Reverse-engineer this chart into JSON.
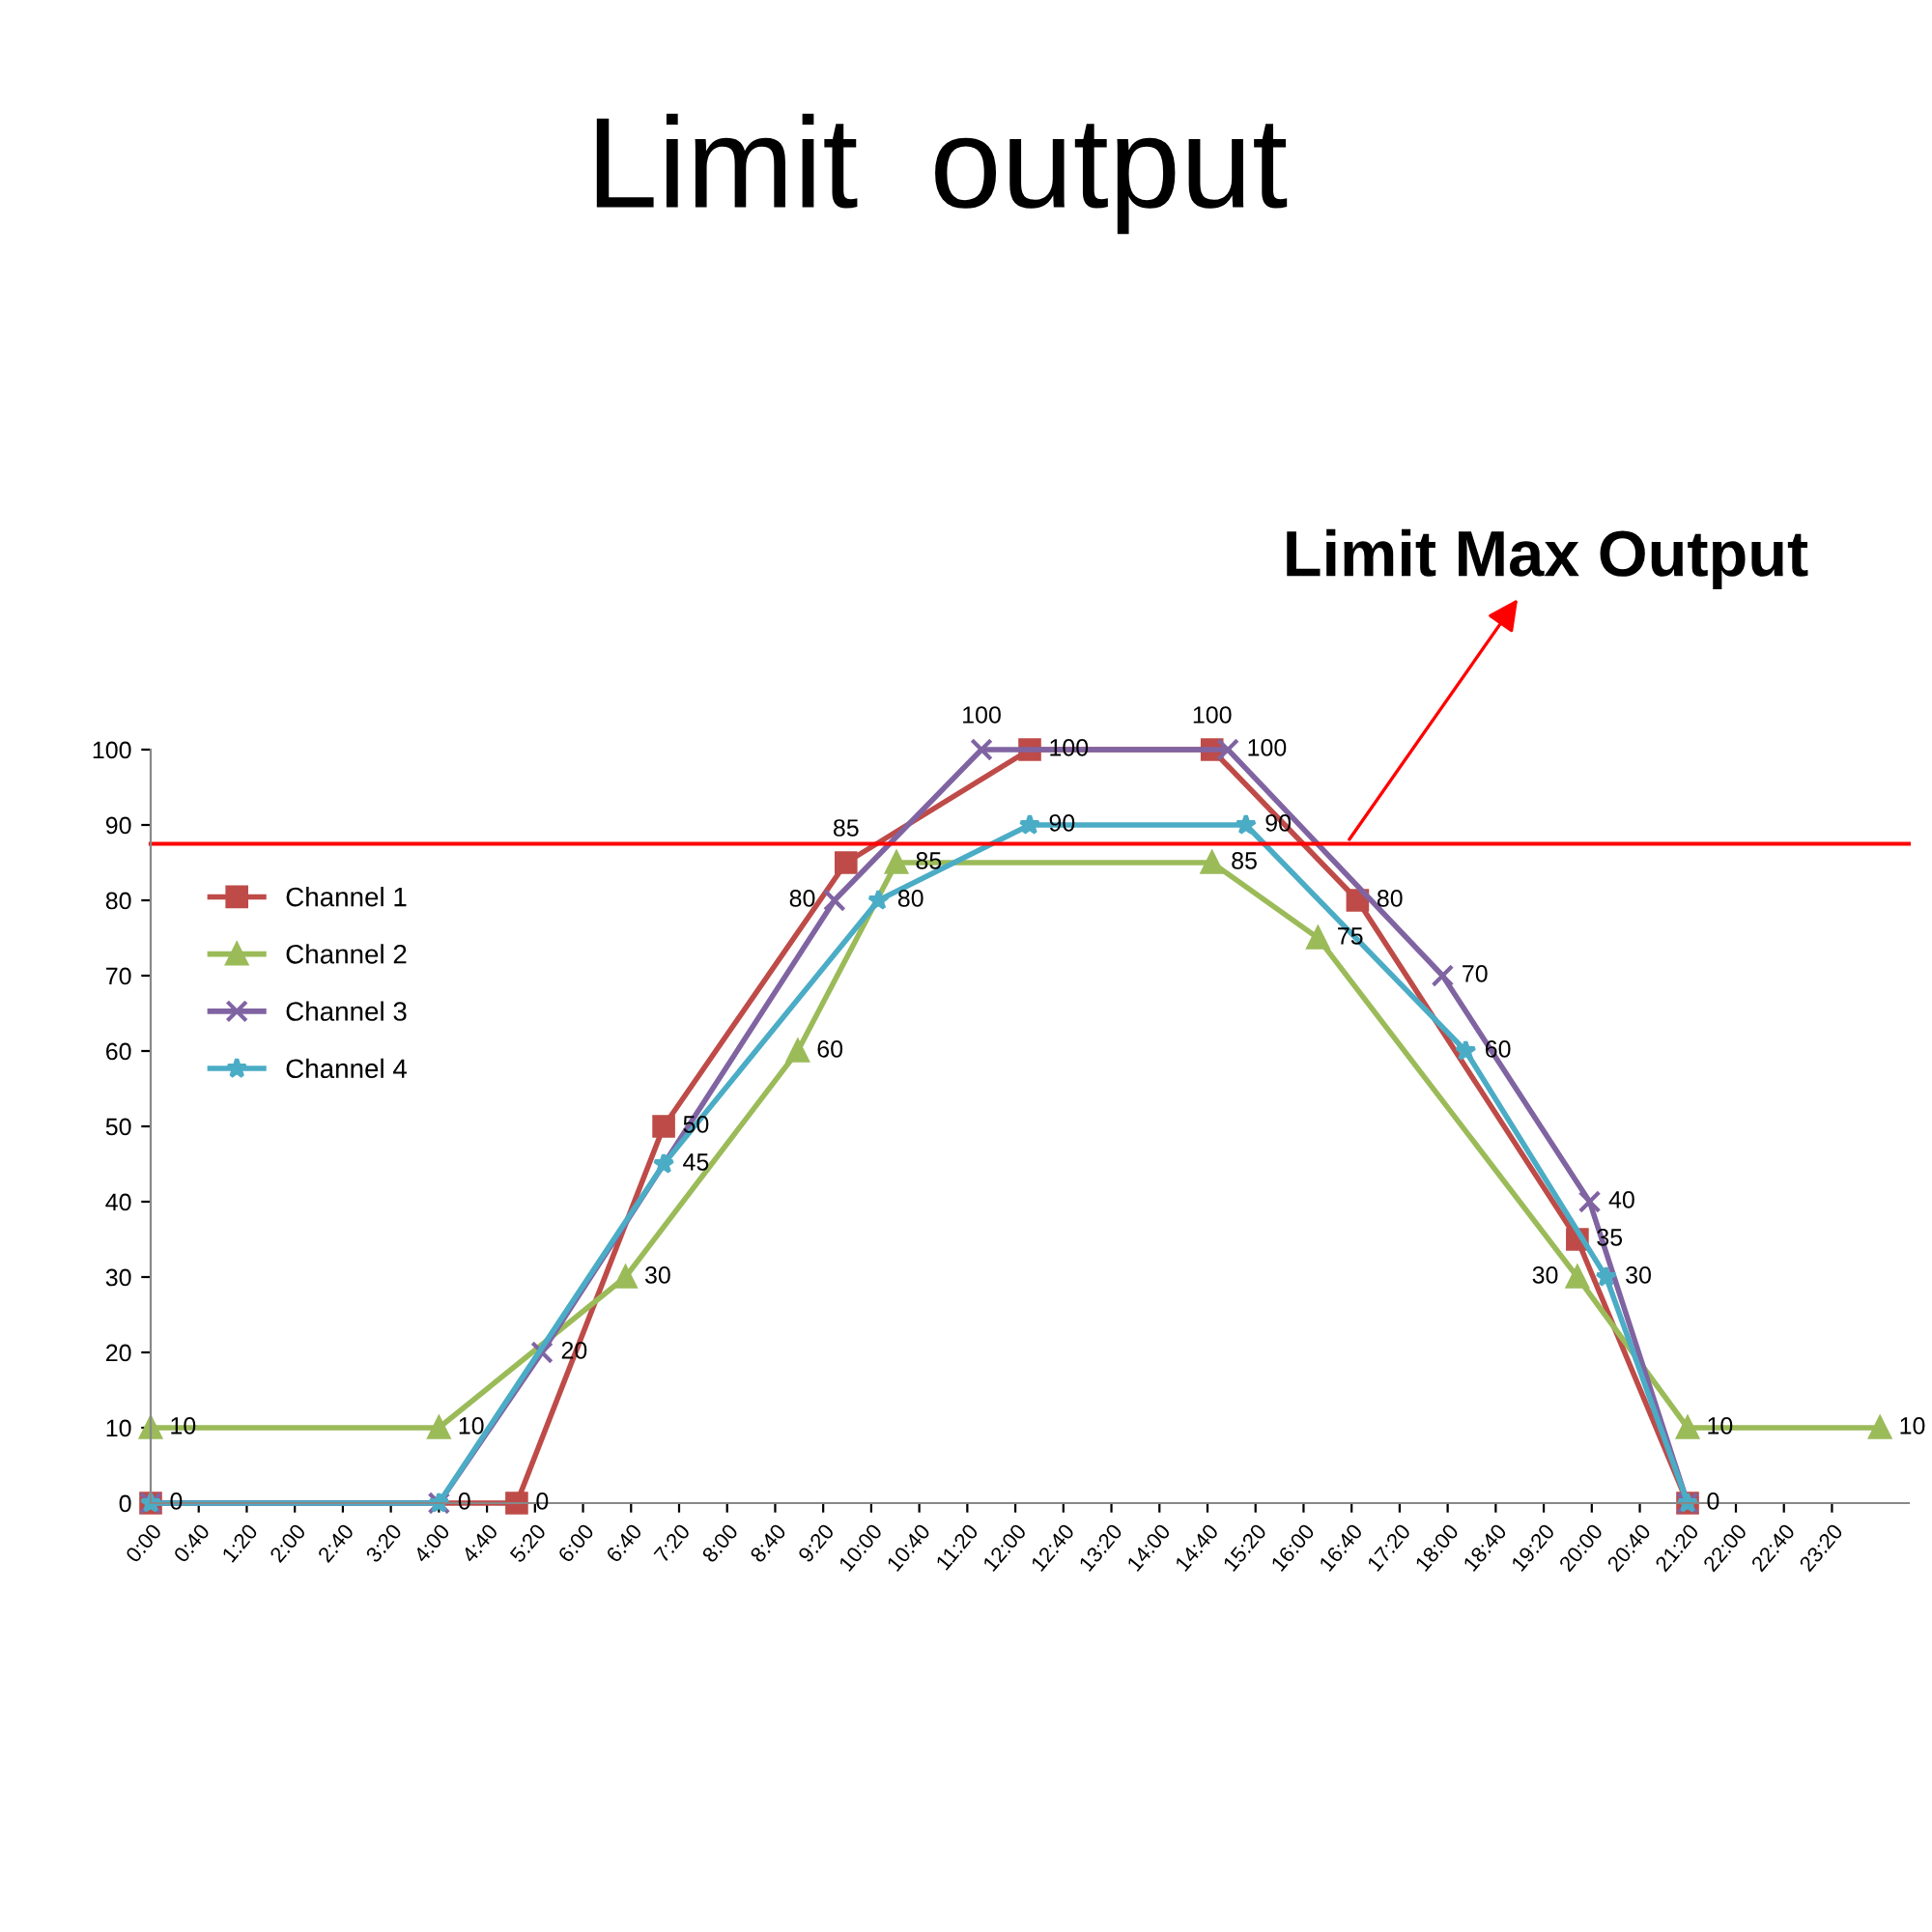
{
  "chart_data": {
    "type": "line",
    "title": "Limit  output",
    "xlim": [
      0,
      24.4
    ],
    "ylim": [
      0,
      100
    ],
    "yticks": [
      0,
      10,
      20,
      30,
      40,
      50,
      60,
      70,
      80,
      90,
      100
    ],
    "xticks": [
      {
        "value": 0,
        "label": "0:00"
      },
      {
        "value": 0.6667,
        "label": "0:40"
      },
      {
        "value": 1.3333,
        "label": "1:20"
      },
      {
        "value": 2,
        "label": "2:00"
      },
      {
        "value": 2.6667,
        "label": "2:40"
      },
      {
        "value": 3.3333,
        "label": "3:20"
      },
      {
        "value": 4,
        "label": "4:00"
      },
      {
        "value": 4.6667,
        "label": "4:40"
      },
      {
        "value": 5.3333,
        "label": "5:20"
      },
      {
        "value": 6,
        "label": "6:00"
      },
      {
        "value": 6.6667,
        "label": "6:40"
      },
      {
        "value": 7.3333,
        "label": "7:20"
      },
      {
        "value": 8,
        "label": "8:00"
      },
      {
        "value": 8.6667,
        "label": "8:40"
      },
      {
        "value": 9.3333,
        "label": "9:20"
      },
      {
        "value": 10,
        "label": "10:00"
      },
      {
        "value": 10.6667,
        "label": "10:40"
      },
      {
        "value": 11.3333,
        "label": "11:20"
      },
      {
        "value": 12,
        "label": "12:00"
      },
      {
        "value": 12.6667,
        "label": "12:40"
      },
      {
        "value": 13.3333,
        "label": "13:20"
      },
      {
        "value": 14,
        "label": "14:00"
      },
      {
        "value": 14.6667,
        "label": "14:40"
      },
      {
        "value": 15.3333,
        "label": "15:20"
      },
      {
        "value": 16,
        "label": "16:00"
      },
      {
        "value": 16.6667,
        "label": "16:40"
      },
      {
        "value": 17.3333,
        "label": "17:20"
      },
      {
        "value": 18,
        "label": "18:00"
      },
      {
        "value": 18.6667,
        "label": "18:40"
      },
      {
        "value": 19.3333,
        "label": "19:20"
      },
      {
        "value": 20,
        "label": "20:00"
      },
      {
        "value": 20.6667,
        "label": "20:40"
      },
      {
        "value": 21.3333,
        "label": "21:20"
      },
      {
        "value": 22,
        "label": "22:00"
      },
      {
        "value": 22.6667,
        "label": "22:40"
      },
      {
        "value": 23.3333,
        "label": "23:20"
      }
    ],
    "series": [
      {
        "name": "Channel 1",
        "color": "#be4b48",
        "marker": "square",
        "x": [
          0,
          5.08,
          7.12,
          9.65,
          12.2,
          14.73,
          16.75,
          19.8,
          21.33
        ],
        "values": [
          0,
          0,
          50,
          85,
          100,
          100,
          80,
          35,
          0
        ]
      },
      {
        "name": "Channel 2",
        "color": "#9bbb59",
        "marker": "triangle",
        "x": [
          0,
          4.0,
          6.59,
          8.98,
          10.35,
          14.73,
          16.2,
          19.8,
          21.33,
          24.0
        ],
        "values": [
          10,
          10,
          30,
          60,
          85,
          85,
          75,
          30,
          10,
          10
        ]
      },
      {
        "name": "Channel 3",
        "color": "#8064a2",
        "marker": "cross",
        "x": [
          0,
          4.0,
          5.43,
          9.49,
          11.53,
          14.95,
          17.93,
          19.97,
          21.33
        ],
        "values": [
          0,
          0,
          20,
          80,
          100,
          100,
          70,
          40,
          0
        ],
        "value_labels": [
          null,
          "0",
          "20",
          "80",
          "100",
          "100",
          "70",
          "40",
          null
        ]
      },
      {
        "name": "Channel 4",
        "color": "#4bacc6",
        "marker": "star",
        "x": [
          0,
          4.0,
          7.12,
          10.1,
          12.2,
          15.2,
          18.25,
          20.2,
          21.33
        ],
        "values": [
          0,
          0,
          45,
          80,
          90,
          90,
          60,
          30,
          0
        ],
        "value_labels": [
          null,
          null,
          "45",
          "80",
          "90",
          "90",
          "60",
          "30",
          null
        ]
      }
    ],
    "data_labels": true,
    "legend": "top left",
    "grid": false,
    "ref_lines": [
      {
        "axis": "y",
        "value": 87.5,
        "label": "Limit Max Output",
        "color": "#ff0000"
      }
    ]
  }
}
